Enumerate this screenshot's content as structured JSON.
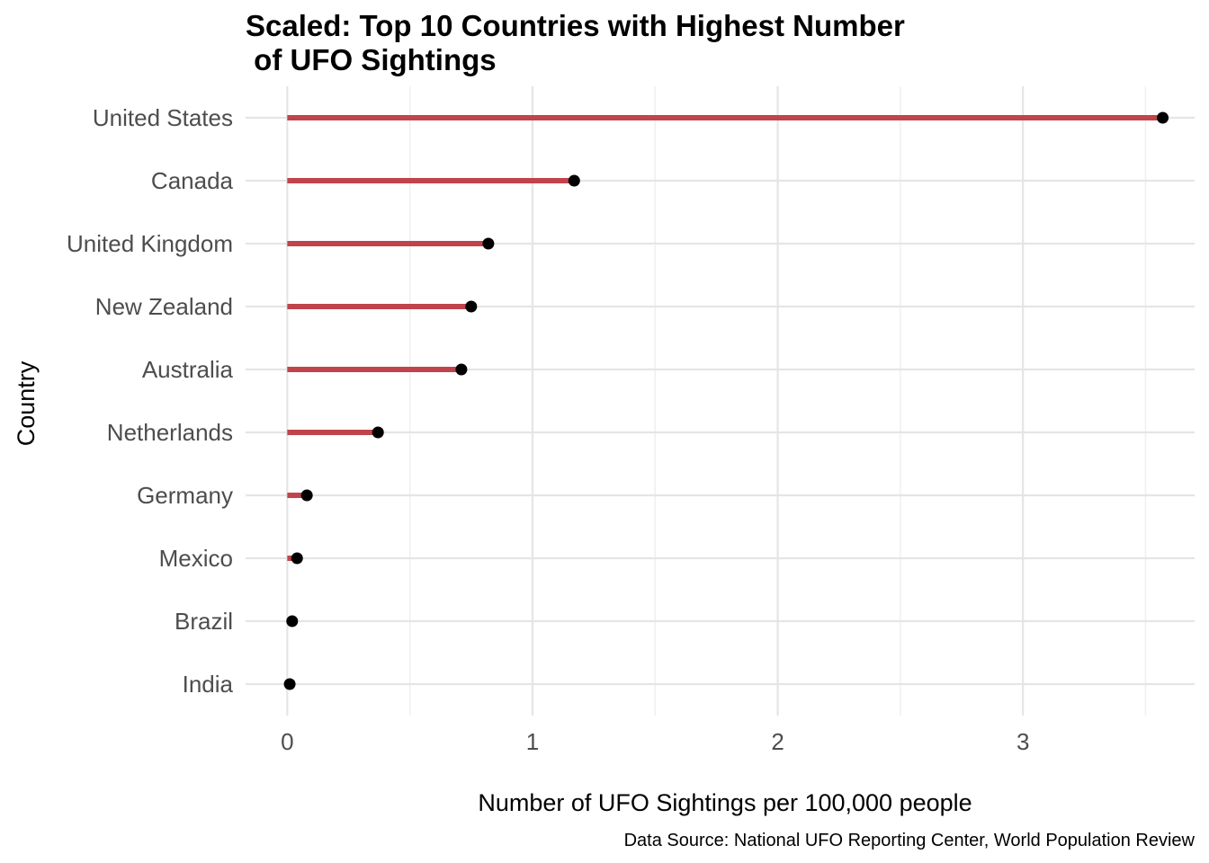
{
  "chart_data": {
    "type": "lollipop",
    "title_lines": [
      "Scaled: Top 10 Countries with Highest Number",
      " of UFO Sightings"
    ],
    "xlabel": "Number of UFO Sightings per 100,000 people",
    "ylabel": "Country",
    "caption": "Data Source: National UFO Reporting Center, World Population Review",
    "categories": [
      "United States",
      "Canada",
      "United Kingdom",
      "New Zealand",
      "Australia",
      "Netherlands",
      "Germany",
      "Mexico",
      "Brazil",
      "India"
    ],
    "values": [
      3.57,
      1.17,
      0.82,
      0.75,
      0.71,
      0.37,
      0.08,
      0.04,
      0.02,
      0.01
    ],
    "xlim": [
      -0.17,
      3.7
    ],
    "x_ticks": [
      0,
      1,
      2,
      3
    ],
    "x_tick_labels": [
      "0",
      "1",
      "2",
      "3"
    ],
    "grid": true,
    "colors": {
      "stem": "#C0444B",
      "point": "#000000",
      "grid_major": "#e5e5e5",
      "grid_minor": "#f0f0f0"
    }
  }
}
